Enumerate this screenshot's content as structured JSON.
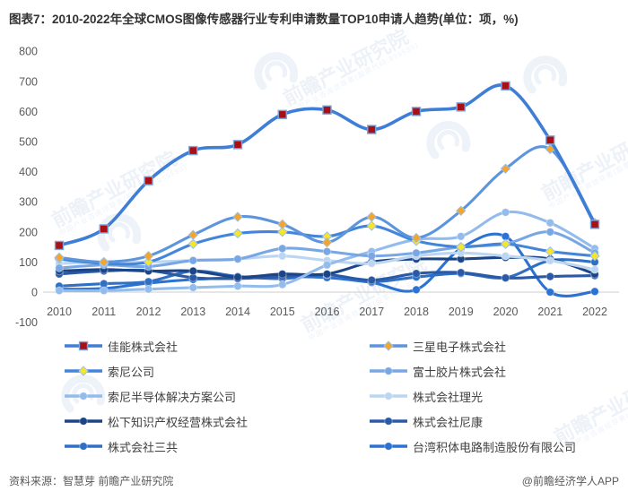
{
  "title": "图表7：2010-2022年全球CMOS图像传感器行业专利申请数量TOP10申请人趋势(单位：项，%)",
  "footer": {
    "source": "资料来源：智慧芽 前瞻产业研究院",
    "credit": "@前瞻经济学人APP"
  },
  "watermark": {
    "text": "前瞻产业研究院",
    "subtext": "中国产业咨询领导者(股票代码:839599)"
  },
  "chart_data": {
    "type": "line",
    "title": "2010-2022年全球CMOS图像传感器行业专利申请数量TOP10申请人趋势",
    "unit": "项，%",
    "x": [
      2010,
      2011,
      2012,
      2013,
      2014,
      2015,
      2016,
      2017,
      2018,
      2019,
      2020,
      2021,
      2022
    ],
    "xlabel": "",
    "ylabel": "",
    "ylim": [
      -100,
      800
    ],
    "yticks": [
      800,
      700,
      600,
      500,
      400,
      300,
      200,
      100,
      0,
      -100
    ],
    "grid": false,
    "legend_position": "bottom",
    "series": [
      {
        "name": "佳能株式会社",
        "color": "#3e7ed6",
        "marker": "square",
        "marker_color": "#a91016",
        "values": [
          155,
          210,
          370,
          470,
          490,
          590,
          605,
          540,
          600,
          615,
          685,
          505,
          225
        ]
      },
      {
        "name": "三星电子株式会社",
        "color": "#5d95dd",
        "marker": "diamond",
        "marker_color": "#f5a62a",
        "values": [
          115,
          100,
          120,
          190,
          250,
          225,
          165,
          250,
          180,
          270,
          410,
          475,
          230
        ]
      },
      {
        "name": "索尼公司",
        "color": "#4385da",
        "marker": "diamond",
        "marker_color": "#f5e62a",
        "values": [
          110,
          95,
          100,
          160,
          195,
          200,
          185,
          220,
          170,
          150,
          160,
          135,
          120
        ]
      },
      {
        "name": "富士胶片株式会社",
        "color": "#79a7e4",
        "marker": "circle",
        "marker_color": "#79a7e4",
        "values": [
          80,
          90,
          85,
          105,
          110,
          145,
          135,
          120,
          130,
          150,
          160,
          200,
          130
        ]
      },
      {
        "name": "索尼半导体解决方案公司",
        "color": "#93bcec",
        "marker": "circle",
        "marker_color": "#93bcec",
        "values": [
          5,
          5,
          10,
          15,
          20,
          25,
          90,
          135,
          175,
          185,
          265,
          230,
          145
        ]
      },
      {
        "name": "株式会社理光",
        "color": "#bcd6f2",
        "marker": "circle",
        "marker_color": "#bcd6f2",
        "values": [
          95,
          100,
          100,
          105,
          110,
          120,
          105,
          95,
          120,
          130,
          120,
          105,
          75
        ]
      },
      {
        "name": "松下知识产权经营株式会社",
        "color": "#1c4587",
        "marker": "circle",
        "marker_color": "#1c4587",
        "values": [
          70,
          75,
          70,
          70,
          50,
          60,
          60,
          100,
          110,
          110,
          115,
          110,
          60
        ]
      },
      {
        "name": "株式会社尼康",
        "color": "#2a5aa5",
        "marker": "circle",
        "marker_color": "#2a5aa5",
        "values": [
          60,
          70,
          72,
          48,
          45,
          52,
          58,
          40,
          62,
          65,
          47,
          52,
          55
        ]
      },
      {
        "name": "株式会社三共",
        "color": "#2f6fc4",
        "marker": "circle",
        "marker_color": "#2f6fc4",
        "values": [
          20,
          28,
          35,
          70,
          52,
          45,
          58,
          35,
          50,
          62,
          48,
          105,
          100
        ]
      },
      {
        "name": "台湾积体电路制造股份有限公司",
        "color": "#2b72d2",
        "marker": "circle",
        "marker_color": "#2b72d2",
        "values": [
          10,
          12,
          30,
          42,
          48,
          52,
          48,
          32,
          8,
          145,
          185,
          0,
          2
        ]
      }
    ]
  }
}
